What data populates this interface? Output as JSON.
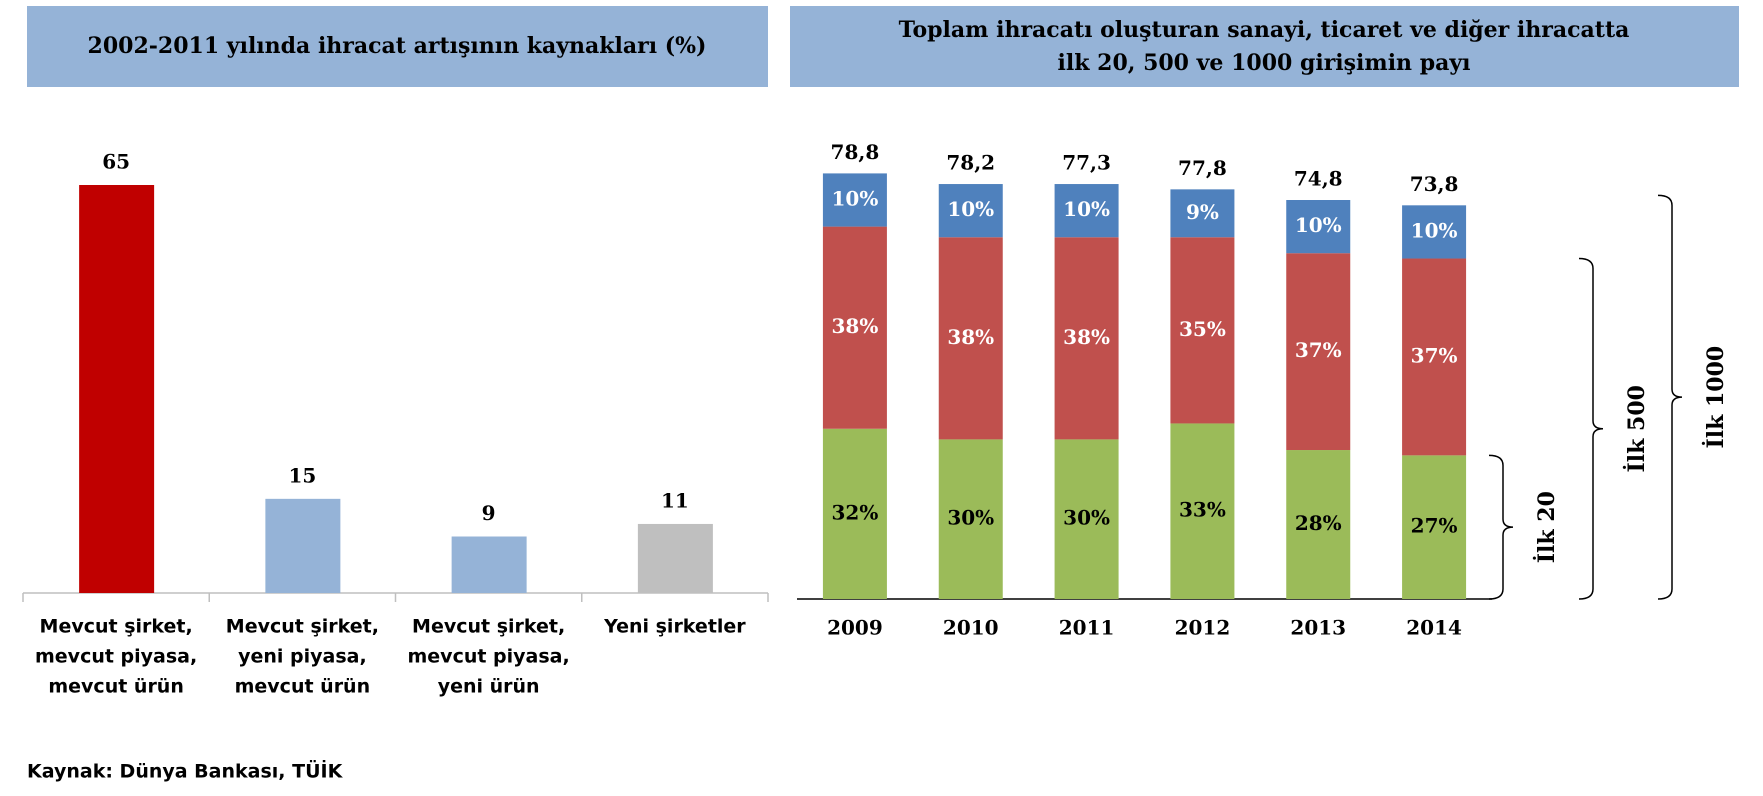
{
  "chart_data": [
    {
      "type": "bar",
      "title": "2002-2011 yılında ihracat artışının kaynakları (%)",
      "categories": [
        [
          "Mevcut şirket,",
          "mevcut piyasa,",
          "mevcut ürün"
        ],
        [
          "Mevcut şirket,",
          "yeni piyasa,",
          "mevcut ürün"
        ],
        [
          "Mevcut şirket,",
          "mevcut piyasa,",
          "yeni ürün"
        ],
        [
          "Yeni şirketler"
        ]
      ],
      "values": [
        65,
        15,
        9,
        11
      ],
      "colors": [
        "#c00000",
        "#95b3d7",
        "#95b3d7",
        "#bfbfbf"
      ],
      "source": "Kaynak: Dünya Bankası, TÜİK"
    },
    {
      "type": "stacked_bar",
      "title": [
        "Toplam ihracatı oluşturan sanayi, ticaret ve diğer ihracatta",
        "ilk 20, 500 ve 1000 girişimin payı"
      ],
      "categories": [
        "2009",
        "2010",
        "2011",
        "2012",
        "2013",
        "2014"
      ],
      "series": [
        {
          "color": "#9bbb59",
          "label_color": "#000000",
          "values": [
            32,
            30,
            30,
            33,
            28,
            27
          ],
          "value_labels": [
            "32%",
            "30%",
            "30%",
            "33%",
            "28%",
            "27%"
          ]
        },
        {
          "color": "#c0504d",
          "label_color": "#ffffff",
          "values": [
            38,
            38,
            38,
            35,
            37,
            37
          ],
          "value_labels": [
            "38%",
            "38%",
            "38%",
            "35%",
            "37%",
            "37%"
          ]
        },
        {
          "color": "#4f81bd",
          "label_color": "#ffffff",
          "values": [
            10,
            10,
            10,
            9,
            10,
            10
          ],
          "value_labels": [
            "10%",
            "10%",
            "10%",
            "9%",
            "10%",
            "10%"
          ]
        }
      ],
      "totals": {
        "values": [
          78.8,
          78.2,
          77.3,
          77.8,
          74.8,
          73.8
        ],
        "value_labels": [
          "78,8",
          "78,2",
          "77,3",
          "77,8",
          "74,8",
          "73,8"
        ]
      },
      "brackets": [
        "İlk 20",
        "İlk 500",
        "İlk 1000"
      ]
    }
  ]
}
